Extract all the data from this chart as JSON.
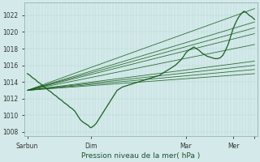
{
  "title": "",
  "ylabel": "Pression niveau de la mer( hPa )",
  "bg_color": "#d4eaea",
  "grid_color_v": "#b8d8d8",
  "grid_color_h": "#b8d8d8",
  "line_color": "#1a6020",
  "yticks": [
    1008,
    1010,
    1012,
    1014,
    1016,
    1018,
    1020,
    1022
  ],
  "ylim": [
    1007.5,
    1023.5
  ],
  "xlim": [
    -0.05,
    4.35
  ],
  "xtick_positions": [
    0.0,
    1.2,
    3.0,
    3.9,
    4.3
  ],
  "xtick_labels": [
    "Sarbun",
    "Dim",
    "Mar",
    "Mer",
    ""
  ],
  "n_vgrid": 80,
  "forecast_starts": [
    [
      0.0,
      1013.0
    ],
    [
      0.0,
      1013.0
    ],
    [
      0.0,
      1013.0
    ],
    [
      0.0,
      1013.0
    ],
    [
      0.0,
      1013.0
    ],
    [
      0.0,
      1013.0
    ],
    [
      0.0,
      1013.0
    ],
    [
      0.0,
      1013.0
    ],
    [
      0.0,
      1013.0
    ]
  ],
  "forecast_ends": [
    [
      4.3,
      1022.8
    ],
    [
      4.3,
      1021.2
    ],
    [
      4.3,
      1020.5
    ],
    [
      4.3,
      1019.8
    ],
    [
      4.3,
      1018.5
    ],
    [
      4.3,
      1016.5
    ],
    [
      4.3,
      1016.0
    ],
    [
      4.3,
      1015.5
    ],
    [
      4.3,
      1015.0
    ]
  ],
  "obs_line_x": [
    0.0,
    0.05,
    0.1,
    0.15,
    0.2,
    0.25,
    0.3,
    0.35,
    0.4,
    0.45,
    0.5,
    0.55,
    0.6,
    0.65,
    0.7,
    0.75,
    0.8,
    0.85,
    0.9,
    0.95,
    1.0,
    1.05,
    1.1,
    1.15,
    1.2,
    1.25,
    1.3,
    1.35,
    1.4,
    1.45,
    1.5,
    1.55,
    1.6,
    1.65,
    1.7,
    1.75,
    1.8,
    1.85,
    1.9,
    1.95,
    2.0,
    2.05,
    2.1,
    2.15,
    2.2,
    2.25,
    2.3,
    2.35,
    2.4,
    2.45,
    2.5,
    2.55,
    2.6,
    2.65,
    2.7,
    2.75,
    2.8,
    2.85,
    2.9,
    2.95,
    3.0,
    3.05,
    3.1,
    3.15,
    3.2,
    3.25,
    3.3,
    3.35,
    3.4,
    3.45,
    3.5,
    3.55,
    3.6,
    3.65,
    3.7,
    3.75,
    3.8,
    3.85,
    3.9,
    3.95,
    4.0,
    4.05,
    4.1,
    4.15,
    4.2,
    4.25,
    4.3
  ],
  "obs_line_y": [
    1015.0,
    1014.8,
    1014.5,
    1014.3,
    1014.0,
    1013.8,
    1013.5,
    1013.3,
    1013.0,
    1012.8,
    1012.5,
    1012.3,
    1012.0,
    1011.8,
    1011.5,
    1011.3,
    1011.0,
    1010.8,
    1010.5,
    1010.0,
    1009.5,
    1009.2,
    1009.0,
    1008.8,
    1008.5,
    1008.7,
    1009.0,
    1009.5,
    1010.0,
    1010.5,
    1011.0,
    1011.5,
    1012.0,
    1012.5,
    1013.0,
    1013.2,
    1013.4,
    1013.5,
    1013.6,
    1013.7,
    1013.8,
    1013.9,
    1014.0,
    1014.1,
    1014.2,
    1014.3,
    1014.4,
    1014.5,
    1014.6,
    1014.7,
    1014.8,
    1015.0,
    1015.2,
    1015.4,
    1015.6,
    1015.8,
    1016.0,
    1016.3,
    1016.6,
    1017.0,
    1017.5,
    1017.8,
    1018.0,
    1018.2,
    1018.0,
    1017.8,
    1017.5,
    1017.3,
    1017.1,
    1017.0,
    1016.9,
    1016.8,
    1016.8,
    1016.9,
    1017.2,
    1017.8,
    1018.5,
    1019.5,
    1020.5,
    1021.2,
    1021.8,
    1022.2,
    1022.5,
    1022.3,
    1022.0,
    1021.8,
    1021.5
  ]
}
